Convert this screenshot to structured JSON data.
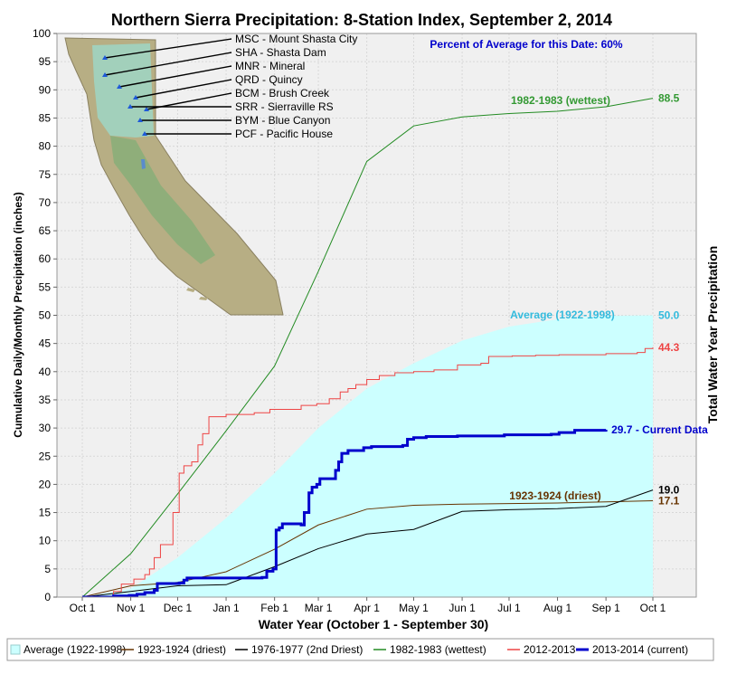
{
  "chart_data": {
    "type": "line",
    "title": "Northern Sierra Precipitation: 8-Station Index, September 2, 2014",
    "subtitle": "Percent of Average for this Date: 60%",
    "xlabel": "Water Year (October 1 - September 30)",
    "ylabel": "Cumulative Daily/Monthly Precipitation (inches)",
    "right_label": "Total Water Year Precipitation",
    "ylim": [
      0,
      100
    ],
    "yticks": [
      0,
      5,
      10,
      15,
      20,
      25,
      30,
      35,
      40,
      45,
      50,
      55,
      60,
      65,
      70,
      75,
      80,
      85,
      90,
      95,
      100
    ],
    "xticks": [
      "Oct 1",
      "Nov 1",
      "Dec 1",
      "Jan 1",
      "Feb 1",
      "Mar 1",
      "Apr 1",
      "May 1",
      "Jun 1",
      "Jul 1",
      "Aug 1",
      "Sep 1",
      "Oct 1"
    ],
    "grid": true,
    "legend_position": "bottom",
    "stations": [
      "MSC - Mount Shasta City",
      "SHA - Shasta Dam",
      "MNR - Mineral",
      "QRD - Quincy",
      "BCM - Brush Creek",
      "SRR - Sierraville RS",
      "BYM - Blue Canyon",
      "PCF - Pacific House"
    ],
    "series": [
      {
        "name": "Average (1922-1998)",
        "kind": "area",
        "color": "#ccffff",
        "label_color": "#33bbdd",
        "annotation": "Average (1922-1998)",
        "final_label": "50.0",
        "points": [
          [
            0,
            0
          ],
          [
            31,
            1.5
          ],
          [
            61,
            7
          ],
          [
            92,
            14
          ],
          [
            123,
            22
          ],
          [
            151,
            30
          ],
          [
            182,
            37
          ],
          [
            212,
            41.5
          ],
          [
            243,
            45.5
          ],
          [
            273,
            48
          ],
          [
            304,
            49.3
          ],
          [
            335,
            49.9
          ],
          [
            365,
            50.0
          ]
        ]
      },
      {
        "name": "1923-1924 (driest)",
        "kind": "line",
        "color": "#663300",
        "label_color": "#663300",
        "annotation": "1923-1924 (driest)",
        "final_label": "17.1",
        "points": [
          [
            0,
            0
          ],
          [
            31,
            2
          ],
          [
            61,
            2.6
          ],
          [
            92,
            4.5
          ],
          [
            123,
            8.5
          ],
          [
            151,
            12.8
          ],
          [
            182,
            15.6
          ],
          [
            212,
            16.3
          ],
          [
            243,
            16.5
          ],
          [
            273,
            16.6
          ],
          [
            304,
            16.7
          ],
          [
            335,
            16.9
          ],
          [
            365,
            17.1
          ]
        ]
      },
      {
        "name": "1976-1977 (2nd Driest)",
        "kind": "line",
        "color": "#000000",
        "label_color": "#000000",
        "annotation": "",
        "final_label": "19.0",
        "points": [
          [
            0,
            0
          ],
          [
            31,
            1
          ],
          [
            61,
            2
          ],
          [
            92,
            2.2
          ],
          [
            123,
            5.4
          ],
          [
            151,
            8.6
          ],
          [
            182,
            11.2
          ],
          [
            212,
            12.0
          ],
          [
            243,
            15.2
          ],
          [
            273,
            15.5
          ],
          [
            304,
            15.7
          ],
          [
            335,
            16.1
          ],
          [
            365,
            19.0
          ]
        ]
      },
      {
        "name": "1982-1983 (wettest)",
        "kind": "line",
        "color": "#228b22",
        "label_color": "#339933",
        "annotation": "1982-1983 (wettest)",
        "final_label": "88.5",
        "points": [
          [
            0,
            0
          ],
          [
            31,
            7.7
          ],
          [
            61,
            18.3
          ],
          [
            92,
            29.5
          ],
          [
            123,
            41
          ],
          [
            151,
            57.8
          ],
          [
            182,
            77.3
          ],
          [
            212,
            83.6
          ],
          [
            243,
            85.2
          ],
          [
            273,
            85.8
          ],
          [
            304,
            86.2
          ],
          [
            335,
            87.0
          ],
          [
            365,
            88.5
          ]
        ]
      },
      {
        "name": "2012-2013",
        "kind": "step",
        "color": "#ee4444",
        "label_color": "#ee4444",
        "annotation": "",
        "final_label": "44.3",
        "points": [
          [
            0,
            0
          ],
          [
            18,
            0
          ],
          [
            20,
            1
          ],
          [
            25,
            2.3
          ],
          [
            33,
            3.2
          ],
          [
            40,
            4
          ],
          [
            43,
            5
          ],
          [
            46,
            7
          ],
          [
            50,
            9.3
          ],
          [
            58,
            15
          ],
          [
            62,
            22
          ],
          [
            65,
            23.3
          ],
          [
            70,
            24
          ],
          [
            74,
            27
          ],
          [
            77,
            29
          ],
          [
            81,
            32
          ],
          [
            92,
            32.4
          ],
          [
            110,
            32.7
          ],
          [
            120,
            33.3
          ],
          [
            140,
            34
          ],
          [
            150,
            34.3
          ],
          [
            158,
            35.2
          ],
          [
            165,
            36.4
          ],
          [
            170,
            37
          ],
          [
            175,
            37.7
          ],
          [
            182,
            38.6
          ],
          [
            190,
            39.3
          ],
          [
            200,
            39.8
          ],
          [
            212,
            40
          ],
          [
            225,
            40.3
          ],
          [
            240,
            41.2
          ],
          [
            255,
            41.5
          ],
          [
            260,
            42.7
          ],
          [
            275,
            42.8
          ],
          [
            290,
            42.9
          ],
          [
            305,
            43
          ],
          [
            335,
            43.2
          ],
          [
            355,
            43.4
          ],
          [
            360,
            44.1
          ],
          [
            365,
            44.3
          ]
        ]
      },
      {
        "name": "2013-2014 (current)",
        "kind": "step",
        "color": "#0000cc",
        "label_color": "#0000cc",
        "annotation": "",
        "final_label": "29.7 -  Current Data",
        "points": [
          [
            0,
            0
          ],
          [
            20,
            0.2
          ],
          [
            30,
            0.3
          ],
          [
            35,
            0.5
          ],
          [
            40,
            0.8
          ],
          [
            46,
            1.2
          ],
          [
            48,
            2.4
          ],
          [
            62,
            2.5
          ],
          [
            65,
            3
          ],
          [
            67,
            3.4
          ],
          [
            90,
            3.4
          ],
          [
            115,
            3.5
          ],
          [
            118,
            4.6
          ],
          [
            122,
            5
          ],
          [
            124,
            11.9
          ],
          [
            126,
            12.3
          ],
          [
            128,
            13
          ],
          [
            140,
            12.8
          ],
          [
            142,
            15
          ],
          [
            145,
            18.5
          ],
          [
            147,
            19.5
          ],
          [
            150,
            20
          ],
          [
            152,
            21
          ],
          [
            160,
            21
          ],
          [
            162,
            22.5
          ],
          [
            164,
            24
          ],
          [
            166,
            25.5
          ],
          [
            170,
            26
          ],
          [
            180,
            26.5
          ],
          [
            185,
            26.7
          ],
          [
            205,
            26.9
          ],
          [
            208,
            28
          ],
          [
            212,
            28.3
          ],
          [
            220,
            28.5
          ],
          [
            240,
            28.6
          ],
          [
            270,
            28.8
          ],
          [
            300,
            28.9
          ],
          [
            305,
            29.2
          ],
          [
            315,
            29.6
          ],
          [
            335,
            29.7
          ]
        ]
      }
    ]
  }
}
